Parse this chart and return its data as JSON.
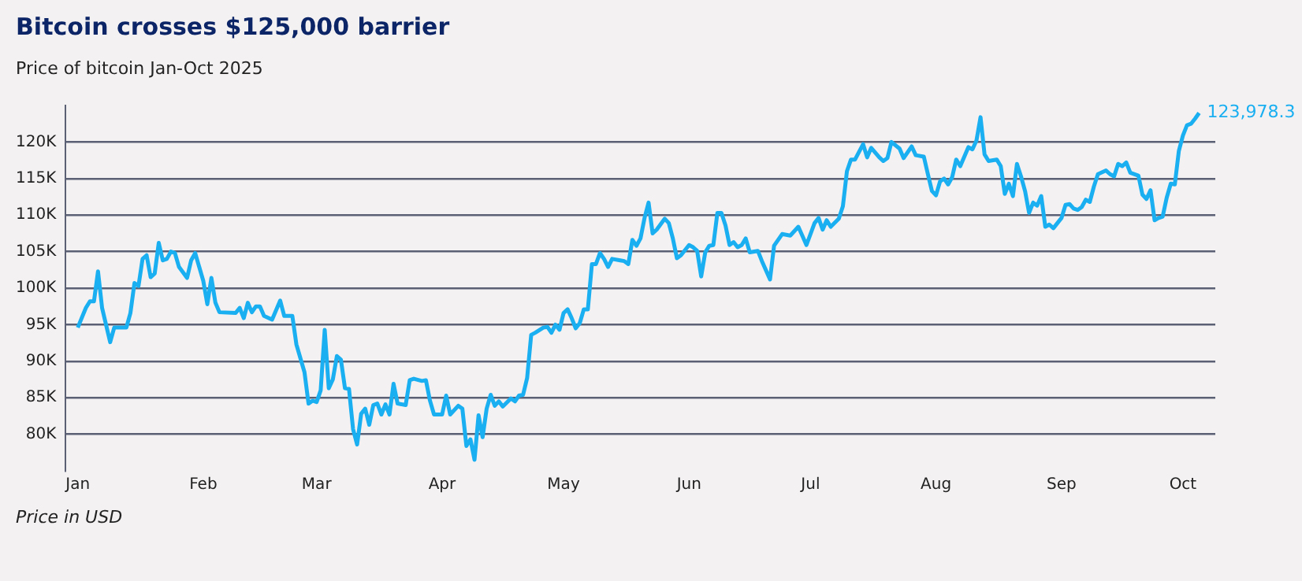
{
  "chart_data": {
    "type": "line",
    "title": "Bitcoin crosses $125,000 barrier",
    "subtitle": "Price of bitcoin Jan-Oct 2025",
    "x": [
      "2025-01-01",
      "2025-01-03",
      "2025-01-04",
      "2025-01-05",
      "2025-01-06",
      "2025-01-07",
      "2025-01-09",
      "2025-01-10",
      "2025-01-13",
      "2025-01-14",
      "2025-01-15",
      "2025-01-16",
      "2025-01-17",
      "2025-01-18",
      "2025-01-19",
      "2025-01-20",
      "2025-01-21",
      "2025-01-22",
      "2025-01-23",
      "2025-01-24",
      "2025-01-25",
      "2025-01-26",
      "2025-01-28",
      "2025-01-29",
      "2025-01-30",
      "2025-02-01",
      "2025-02-02",
      "2025-02-03",
      "2025-02-04",
      "2025-02-05",
      "2025-02-09",
      "2025-02-10",
      "2025-02-11",
      "2025-02-12",
      "2025-02-13",
      "2025-02-14",
      "2025-02-15",
      "2025-02-16",
      "2025-02-18",
      "2025-02-20",
      "2025-02-21",
      "2025-02-23",
      "2025-02-24",
      "2025-02-26",
      "2025-02-27",
      "2025-02-28",
      "2025-03-01",
      "2025-03-02",
      "2025-03-03",
      "2025-03-04",
      "2025-03-05",
      "2025-03-06",
      "2025-03-07",
      "2025-03-08",
      "2025-03-09",
      "2025-03-10",
      "2025-03-11",
      "2025-03-12",
      "2025-03-13",
      "2025-03-14",
      "2025-03-15",
      "2025-03-16",
      "2025-03-17",
      "2025-03-18",
      "2025-03-19",
      "2025-03-20",
      "2025-03-21",
      "2025-03-23",
      "2025-03-24",
      "2025-03-25",
      "2025-03-27",
      "2025-03-28",
      "2025-03-29",
      "2025-03-30",
      "2025-04-01",
      "2025-04-02",
      "2025-04-03",
      "2025-04-05",
      "2025-04-06",
      "2025-04-07",
      "2025-04-08",
      "2025-04-09",
      "2025-04-10",
      "2025-04-11",
      "2025-04-12",
      "2025-04-13",
      "2025-04-14",
      "2025-04-15",
      "2025-04-16",
      "2025-04-18",
      "2025-04-19",
      "2025-04-20",
      "2025-04-21",
      "2025-04-22",
      "2025-04-23",
      "2025-04-24",
      "2025-04-26",
      "2025-04-27",
      "2025-04-28",
      "2025-04-29",
      "2025-04-30",
      "2025-05-01",
      "2025-05-02",
      "2025-05-03",
      "2025-05-04",
      "2025-05-05",
      "2025-05-06",
      "2025-05-07",
      "2025-05-08",
      "2025-05-09",
      "2025-05-10",
      "2025-05-11",
      "2025-05-12",
      "2025-05-13",
      "2025-05-15",
      "2025-05-16",
      "2025-05-17",
      "2025-05-18",
      "2025-05-19",
      "2025-05-20",
      "2025-05-21",
      "2025-05-22",
      "2025-05-23",
      "2025-05-24",
      "2025-05-26",
      "2025-05-27",
      "2025-05-28",
      "2025-05-29",
      "2025-05-30",
      "2025-06-01",
      "2025-06-02",
      "2025-06-03",
      "2025-06-04",
      "2025-06-05",
      "2025-06-06",
      "2025-06-07",
      "2025-06-08",
      "2025-06-09",
      "2025-06-10",
      "2025-06-11",
      "2025-06-12",
      "2025-06-13",
      "2025-06-14",
      "2025-06-15",
      "2025-06-16",
      "2025-06-18",
      "2025-06-19",
      "2025-06-21",
      "2025-06-22",
      "2025-06-24",
      "2025-06-26",
      "2025-06-28",
      "2025-06-30",
      "2025-07-02",
      "2025-07-03",
      "2025-07-04",
      "2025-07-05",
      "2025-07-06",
      "2025-07-08",
      "2025-07-09",
      "2025-07-10",
      "2025-07-11",
      "2025-07-12",
      "2025-07-14",
      "2025-07-15",
      "2025-07-16",
      "2025-07-18",
      "2025-07-19",
      "2025-07-20",
      "2025-07-21",
      "2025-07-23",
      "2025-07-24",
      "2025-07-26",
      "2025-07-27",
      "2025-07-29",
      "2025-07-30",
      "2025-07-31",
      "2025-08-01",
      "2025-08-02",
      "2025-08-03",
      "2025-08-04",
      "2025-08-05",
      "2025-08-06",
      "2025-08-07",
      "2025-08-09",
      "2025-08-10",
      "2025-08-11",
      "2025-08-12",
      "2025-08-13",
      "2025-08-14",
      "2025-08-16",
      "2025-08-17",
      "2025-08-18",
      "2025-08-19",
      "2025-08-20",
      "2025-08-21",
      "2025-08-22",
      "2025-08-23",
      "2025-08-24",
      "2025-08-25",
      "2025-08-26",
      "2025-08-27",
      "2025-08-28",
      "2025-08-29",
      "2025-08-30",
      "2025-09-01",
      "2025-09-02",
      "2025-09-03",
      "2025-09-04",
      "2025-09-05",
      "2025-09-06",
      "2025-09-07",
      "2025-09-08",
      "2025-09-09",
      "2025-09-10",
      "2025-09-12",
      "2025-09-13",
      "2025-09-14",
      "2025-09-15",
      "2025-09-16",
      "2025-09-17",
      "2025-09-18",
      "2025-09-20",
      "2025-09-21",
      "2025-09-22",
      "2025-09-23",
      "2025-09-24",
      "2025-09-25",
      "2025-09-26",
      "2025-09-27",
      "2025-09-28",
      "2025-09-29",
      "2025-09-30",
      "2025-10-01",
      "2025-10-02",
      "2025-10-03",
      "2025-10-04",
      "2025-10-05"
    ],
    "series": [
      {
        "color": "#1aaff0",
        "values": [
          94600,
          97300,
          98200,
          98200,
          102300,
          97300,
          92600,
          94600,
          94600,
          96600,
          100700,
          100300,
          104000,
          104500,
          101500,
          102000,
          106200,
          103800,
          104000,
          105000,
          104800,
          102900,
          101400,
          103800,
          104800,
          101000,
          97800,
          101400,
          98000,
          96700,
          96600,
          97300,
          95900,
          98000,
          96700,
          97500,
          97500,
          96200,
          95700,
          98300,
          96200,
          96200,
          92300,
          88500,
          84200,
          84600,
          84400,
          86000,
          94300,
          86300,
          87500,
          90700,
          90200,
          86300,
          86200,
          80700,
          78600,
          82800,
          83500,
          81300,
          84000,
          84200,
          82700,
          84100,
          82700,
          86900,
          84200,
          84000,
          87400,
          87600,
          87300,
          87400,
          84600,
          82700,
          82700,
          85300,
          82700,
          83900,
          83500,
          78400,
          79300,
          76500,
          82600,
          79600,
          83500,
          85400,
          83900,
          84500,
          83800,
          84900,
          84500,
          85300,
          85400,
          87700,
          93600,
          93900,
          94600,
          94700,
          93900,
          95000,
          94300,
          96600,
          97100,
          95900,
          94500,
          95200,
          97100,
          97100,
          103300,
          103300,
          104800,
          104000,
          102900,
          104000,
          103800,
          103700,
          103300,
          106600,
          105800,
          106800,
          109600,
          111700,
          107500,
          108000,
          109500,
          108900,
          106800,
          104100,
          104500,
          105900,
          105600,
          105100,
          101600,
          104900,
          105800,
          105900,
          110300,
          110300,
          108600,
          105900,
          106300,
          105600,
          105900,
          106800,
          104900,
          105100,
          103700,
          101200,
          105800,
          107400,
          107200,
          108400,
          105900,
          108900,
          109600,
          108000,
          109300,
          108400,
          109500,
          111200,
          116000,
          117600,
          117600,
          119700,
          117900,
          119200,
          117900,
          117400,
          117800,
          120000,
          119100,
          117800,
          119400,
          118200,
          118000,
          115600,
          113300,
          112700,
          114600,
          115000,
          114200,
          115200,
          117600,
          116700,
          119300,
          119000,
          120200,
          123400,
          118300,
          117400,
          117600,
          116700,
          112900,
          114300,
          112600,
          117000,
          115300,
          113300,
          110300,
          111700,
          111300,
          112600,
          108400,
          108700,
          108200,
          109600,
          111400,
          111500,
          110900,
          110700,
          111100,
          112100,
          111800,
          113900,
          115600,
          116100,
          115600,
          115300,
          117000,
          116700,
          117200,
          115800,
          115400,
          112800,
          112200,
          113400,
          109300,
          109600,
          109800,
          112400,
          114300,
          114200,
          118800,
          120900,
          122300,
          122500,
          123200,
          123978.3
        ]
      }
    ],
    "xlim": [
      "2024-12-29",
      "2025-10-09"
    ],
    "xticks": [
      {
        "value": "2025-01-01",
        "label": "Jan"
      },
      {
        "value": "2025-02-01",
        "label": "Feb"
      },
      {
        "value": "2025-03-01",
        "label": "Mar"
      },
      {
        "value": "2025-04-01",
        "label": "Apr"
      },
      {
        "value": "2025-05-01",
        "label": "May"
      },
      {
        "value": "2025-06-01",
        "label": "Jun"
      },
      {
        "value": "2025-07-01",
        "label": "Jul"
      },
      {
        "value": "2025-08-01",
        "label": "Aug"
      },
      {
        "value": "2025-09-01",
        "label": "Sep"
      },
      {
        "value": "2025-10-01",
        "label": "Oct"
      }
    ],
    "ylim": [
      75000,
      125000
    ],
    "yticks": [
      {
        "value": 80000,
        "label": "80K"
      },
      {
        "value": 85000,
        "label": "85K"
      },
      {
        "value": 90000,
        "label": "90K"
      },
      {
        "value": 95000,
        "label": "95K"
      },
      {
        "value": 100000,
        "label": "100K"
      },
      {
        "value": 105000,
        "label": "105K"
      },
      {
        "value": 110000,
        "label": "110K"
      },
      {
        "value": 115000,
        "label": "115K"
      },
      {
        "value": 120000,
        "label": "120K"
      }
    ],
    "grid": "y",
    "legend": false,
    "marker": "none",
    "annotations": [
      {
        "text": "123,978.3",
        "x": "2025-10-05",
        "y": 123978.3
      },
      "Price in USD"
    ]
  }
}
